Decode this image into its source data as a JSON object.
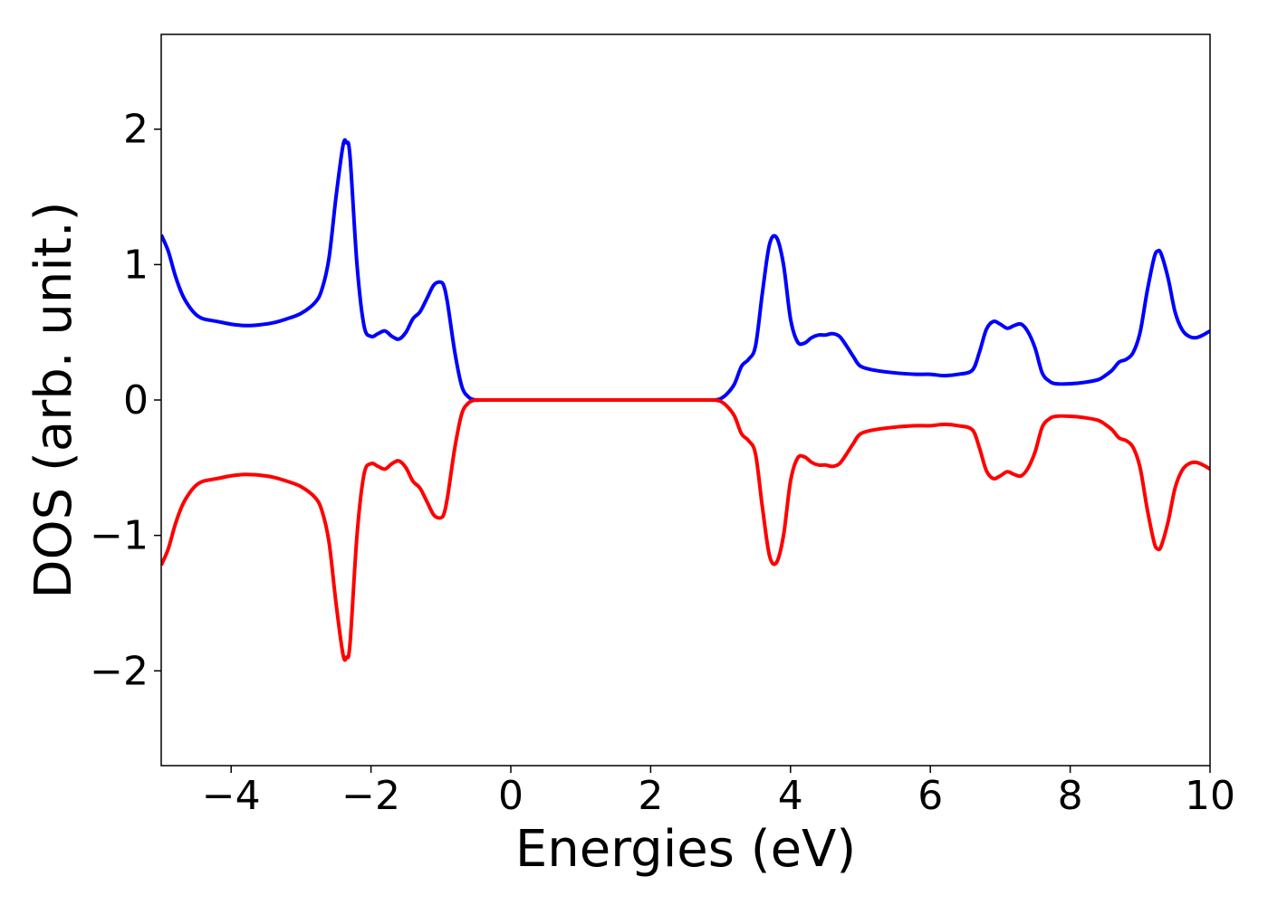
{
  "chart_data": {
    "type": "line",
    "title": "",
    "xlabel": "Energies (eV)",
    "ylabel": "DOS (arb. unit.)",
    "xlim": [
      -5,
      10
    ],
    "ylim": [
      -2.7,
      2.7
    ],
    "grid": false,
    "legend": "none",
    "xticks": [
      -4,
      -2,
      0,
      2,
      4,
      6,
      8,
      10
    ],
    "xtick_labels": [
      "−4",
      "−2",
      "0",
      "2",
      "4",
      "6",
      "8",
      "10"
    ],
    "yticks": [
      -2,
      -1,
      0,
      1,
      2
    ],
    "ytick_labels": [
      "−2",
      "−1",
      "0",
      "1",
      "2"
    ],
    "series": [
      {
        "color": "#0000ff",
        "x": [
          -5.0,
          -4.9,
          -4.8,
          -4.7,
          -4.6,
          -4.5,
          -4.4,
          -4.2,
          -4.0,
          -3.8,
          -3.6,
          -3.4,
          -3.2,
          -3.0,
          -2.8,
          -2.7,
          -2.6,
          -2.5,
          -2.4,
          -2.35,
          -2.3,
          -2.2,
          -2.1,
          -2.0,
          -1.9,
          -1.8,
          -1.7,
          -1.6,
          -1.5,
          -1.4,
          -1.3,
          -1.2,
          -1.1,
          -1.0,
          -0.95,
          -0.9,
          -0.8,
          -0.7,
          -0.6,
          -0.5,
          -0.4,
          0.0,
          1.0,
          2.0,
          2.8,
          2.9,
          3.0,
          3.1,
          3.2,
          3.3,
          3.4,
          3.5,
          3.6,
          3.7,
          3.8,
          3.9,
          4.0,
          4.1,
          4.2,
          4.3,
          4.4,
          4.5,
          4.6,
          4.7,
          4.8,
          4.9,
          5.0,
          5.2,
          5.5,
          5.8,
          6.0,
          6.2,
          6.4,
          6.6,
          6.7,
          6.8,
          6.9,
          7.0,
          7.1,
          7.2,
          7.3,
          7.4,
          7.5,
          7.6,
          7.7,
          7.8,
          8.0,
          8.2,
          8.4,
          8.5,
          8.6,
          8.7,
          8.8,
          8.9,
          9.0,
          9.1,
          9.2,
          9.25,
          9.3,
          9.4,
          9.5,
          9.6,
          9.7,
          9.8,
          9.9,
          10.0
        ],
        "y": [
          1.22,
          1.1,
          0.92,
          0.78,
          0.69,
          0.63,
          0.6,
          0.58,
          0.56,
          0.55,
          0.555,
          0.57,
          0.6,
          0.64,
          0.72,
          0.82,
          1.05,
          1.5,
          1.88,
          1.9,
          1.8,
          1.0,
          0.55,
          0.47,
          0.49,
          0.51,
          0.47,
          0.45,
          0.5,
          0.6,
          0.65,
          0.75,
          0.85,
          0.87,
          0.83,
          0.7,
          0.35,
          0.1,
          0.02,
          0.0,
          0.0,
          0.0,
          0.0,
          0.0,
          0.0,
          0.0,
          0.01,
          0.05,
          0.12,
          0.25,
          0.3,
          0.4,
          0.8,
          1.15,
          1.2,
          1.0,
          0.6,
          0.43,
          0.42,
          0.46,
          0.48,
          0.48,
          0.49,
          0.47,
          0.4,
          0.32,
          0.25,
          0.22,
          0.2,
          0.19,
          0.19,
          0.18,
          0.19,
          0.22,
          0.35,
          0.52,
          0.58,
          0.56,
          0.53,
          0.55,
          0.56,
          0.5,
          0.38,
          0.2,
          0.14,
          0.12,
          0.12,
          0.13,
          0.15,
          0.18,
          0.22,
          0.28,
          0.3,
          0.35,
          0.5,
          0.8,
          1.05,
          1.1,
          1.08,
          0.9,
          0.65,
          0.52,
          0.47,
          0.46,
          0.48,
          0.51
        ]
      },
      {
        "color": "#ff0000",
        "x": [
          -5.0,
          -4.9,
          -4.8,
          -4.7,
          -4.6,
          -4.5,
          -4.4,
          -4.2,
          -4.0,
          -3.8,
          -3.6,
          -3.4,
          -3.2,
          -3.0,
          -2.8,
          -2.7,
          -2.6,
          -2.5,
          -2.4,
          -2.35,
          -2.3,
          -2.2,
          -2.1,
          -2.0,
          -1.9,
          -1.8,
          -1.7,
          -1.6,
          -1.5,
          -1.4,
          -1.3,
          -1.2,
          -1.1,
          -1.0,
          -0.95,
          -0.9,
          -0.8,
          -0.7,
          -0.6,
          -0.5,
          -0.4,
          0.0,
          1.0,
          2.0,
          2.8,
          2.9,
          3.0,
          3.1,
          3.2,
          3.3,
          3.4,
          3.5,
          3.6,
          3.7,
          3.8,
          3.9,
          4.0,
          4.1,
          4.2,
          4.3,
          4.4,
          4.5,
          4.6,
          4.7,
          4.8,
          4.9,
          5.0,
          5.2,
          5.5,
          5.8,
          6.0,
          6.2,
          6.4,
          6.6,
          6.7,
          6.8,
          6.9,
          7.0,
          7.1,
          7.2,
          7.3,
          7.4,
          7.5,
          7.6,
          7.7,
          7.8,
          8.0,
          8.2,
          8.4,
          8.5,
          8.6,
          8.7,
          8.8,
          8.9,
          9.0,
          9.1,
          9.2,
          9.25,
          9.3,
          9.4,
          9.5,
          9.6,
          9.7,
          9.8,
          9.9,
          10.0
        ],
        "y": [
          -1.22,
          -1.1,
          -0.92,
          -0.78,
          -0.69,
          -0.63,
          -0.6,
          -0.58,
          -0.56,
          -0.55,
          -0.555,
          -0.57,
          -0.6,
          -0.64,
          -0.72,
          -0.82,
          -1.05,
          -1.5,
          -1.88,
          -1.9,
          -1.8,
          -1.0,
          -0.55,
          -0.47,
          -0.49,
          -0.51,
          -0.47,
          -0.45,
          -0.5,
          -0.6,
          -0.65,
          -0.75,
          -0.85,
          -0.87,
          -0.83,
          -0.7,
          -0.35,
          -0.1,
          -0.02,
          0.0,
          0.0,
          0.0,
          0.0,
          0.0,
          0.0,
          0.0,
          -0.01,
          -0.05,
          -0.12,
          -0.25,
          -0.3,
          -0.4,
          -0.8,
          -1.15,
          -1.2,
          -1.0,
          -0.6,
          -0.43,
          -0.42,
          -0.46,
          -0.48,
          -0.48,
          -0.49,
          -0.47,
          -0.4,
          -0.32,
          -0.25,
          -0.22,
          -0.2,
          -0.19,
          -0.19,
          -0.18,
          -0.19,
          -0.22,
          -0.35,
          -0.52,
          -0.58,
          -0.56,
          -0.53,
          -0.55,
          -0.56,
          -0.5,
          -0.38,
          -0.2,
          -0.14,
          -0.12,
          -0.12,
          -0.13,
          -0.15,
          -0.18,
          -0.22,
          -0.28,
          -0.3,
          -0.35,
          -0.5,
          -0.8,
          -1.05,
          -1.1,
          -1.08,
          -0.9,
          -0.65,
          -0.52,
          -0.47,
          -0.46,
          -0.48,
          -0.51
        ]
      }
    ]
  }
}
